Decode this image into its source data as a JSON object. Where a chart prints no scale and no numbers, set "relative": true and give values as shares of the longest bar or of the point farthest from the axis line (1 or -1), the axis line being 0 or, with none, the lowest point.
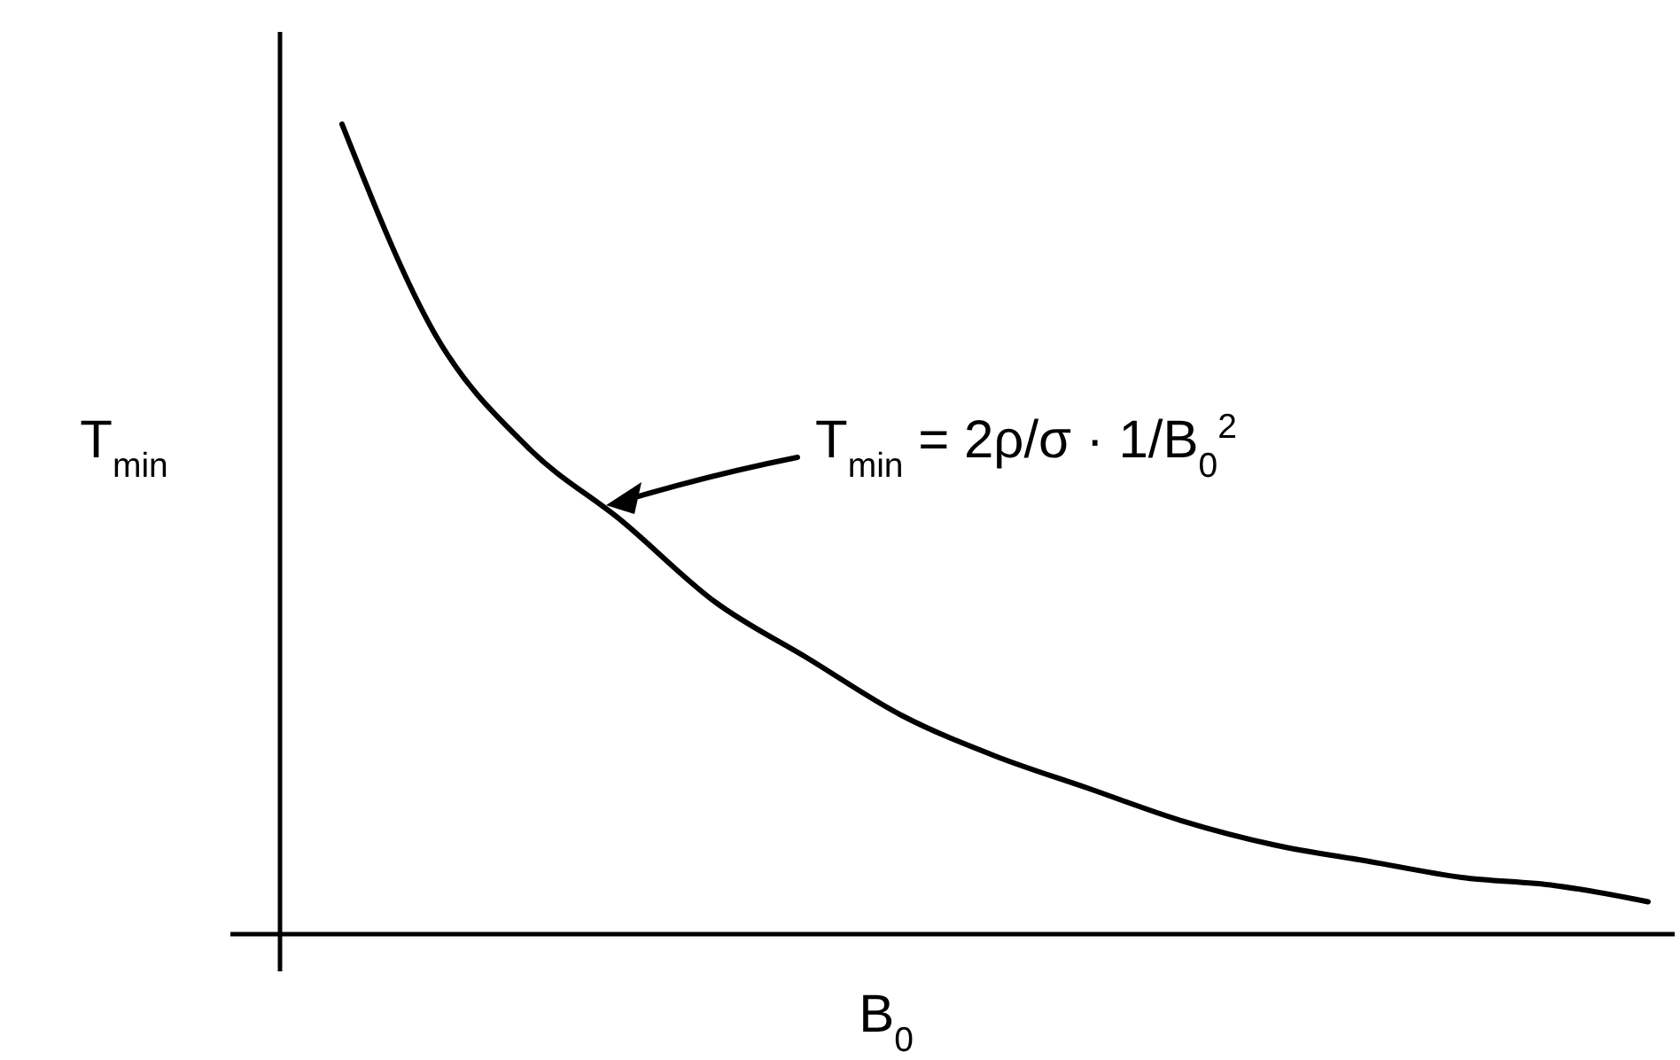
{
  "chart_data": {
    "type": "line",
    "relative": true,
    "xlabel": "B$_{0}$",
    "ylabel": "T$_{min}$",
    "annotations": [
      "T$_{min}$ = 2ρ/σ · 1/B$_{0}$$^{2}$"
    ],
    "categories": [
      null,
      null,
      null,
      null,
      null,
      null,
      null,
      null,
      null,
      null,
      null,
      null,
      null,
      null,
      null
    ],
    "series": [
      {
        "color": "#000000",
        "values": [
          1.0,
          0.74,
          0.6,
          0.51,
          0.41,
          0.34,
          0.27,
          0.22,
          0.18,
          0.14,
          0.11,
          0.09,
          0.07,
          0.06,
          0.04
        ]
      }
    ],
    "marker": "none",
    "line_style": "solid"
  }
}
